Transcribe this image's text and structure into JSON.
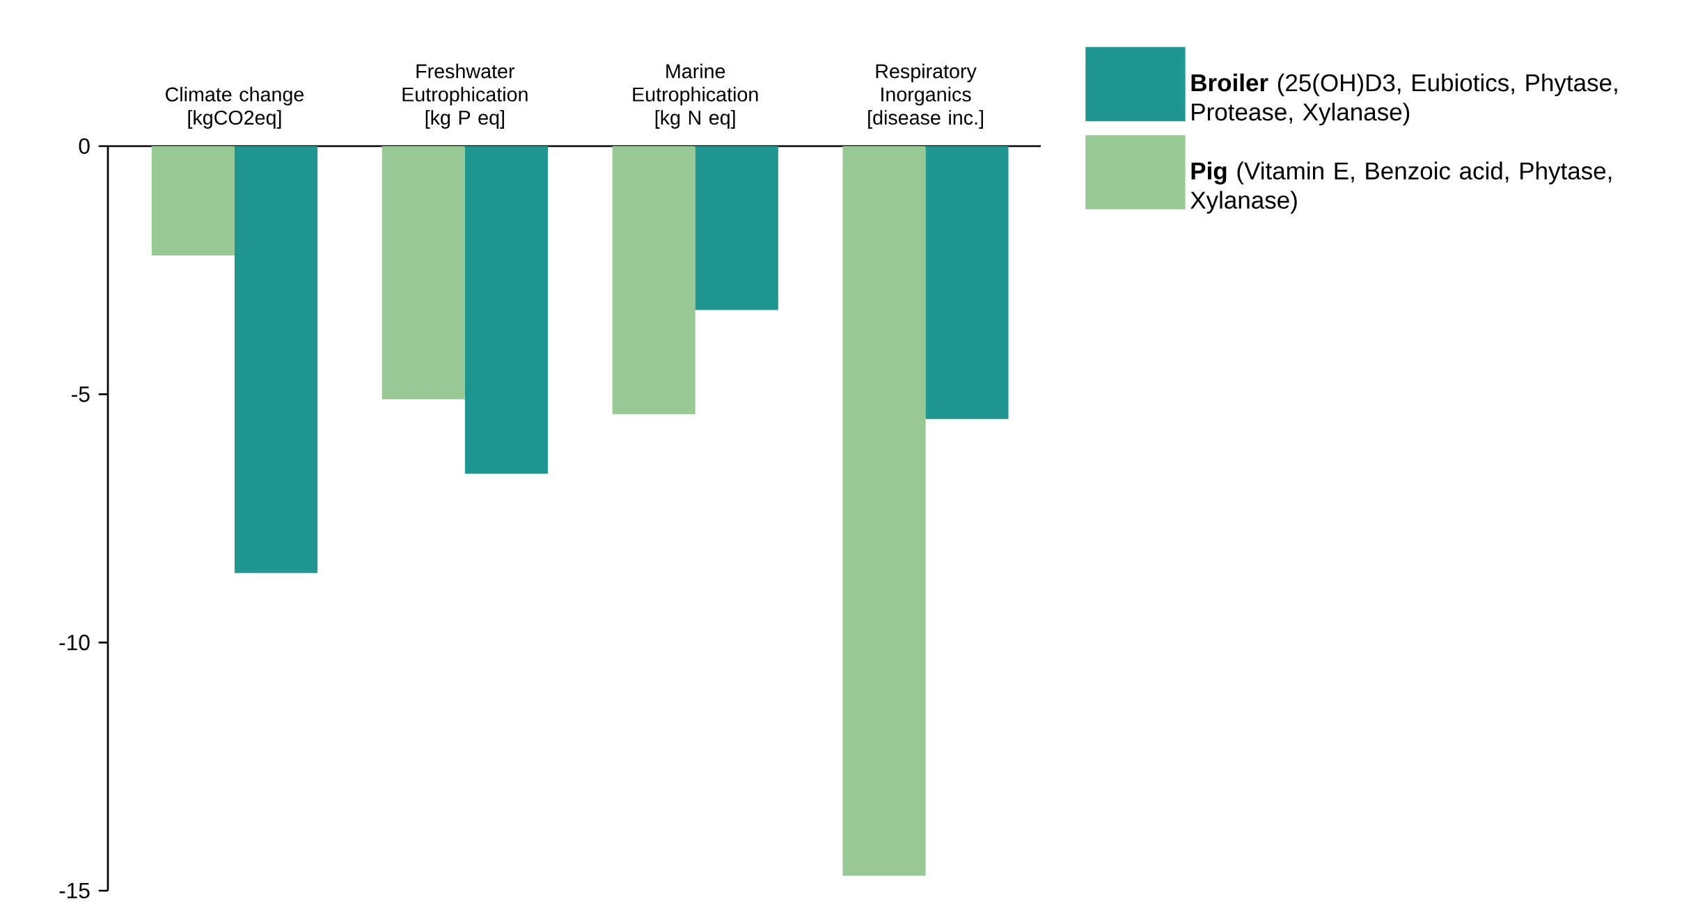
{
  "chart_data": {
    "type": "bar",
    "categories": [
      "Climate change [kgCO2eq]",
      "Freshwater Eutrophication [kg P eq]",
      "Marine Eutrophication [kg N eq]",
      "Respiratory Inorganics [disease inc.]"
    ],
    "series": [
      {
        "name": "**Pig** (Vitamin E, Benzoic acid, Phytase, Xylanase)",
        "color": "#98c995",
        "values": [
          -2.2,
          -5.1,
          -5.4,
          -14.7
        ]
      },
      {
        "name": "**Broiler** (25(OH)D3, Eubiotics, Phytase, Protease, Xylanase)",
        "color": "#1f968f",
        "values": [
          -8.6,
          -6.6,
          -3.3,
          -5.5
        ]
      }
    ],
    "ylim": [
      -15,
      0
    ],
    "yticks": [
      -15,
      -10,
      -5,
      0
    ],
    "grid": false,
    "legend": "top right"
  }
}
